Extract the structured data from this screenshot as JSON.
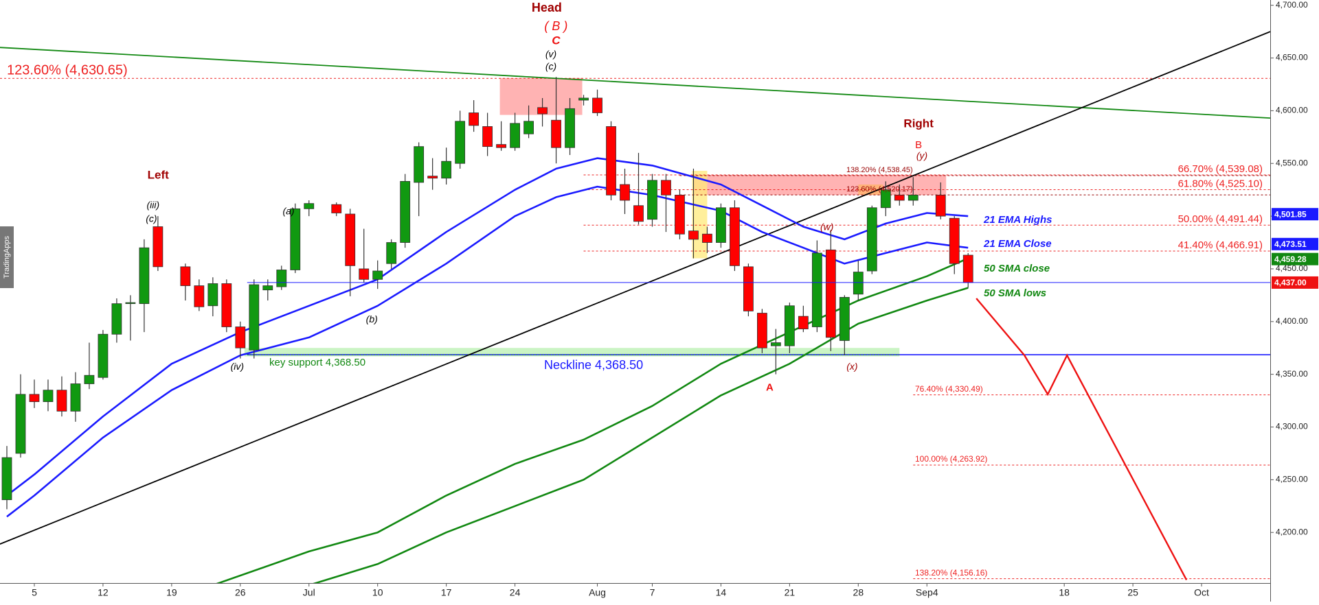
{
  "chart_data": {
    "type": "candlestick",
    "watermark": "TradingApps",
    "up_color": "#119911",
    "down_color": "#ff0000",
    "x": [
      -2,
      -1,
      0,
      1,
      2,
      3,
      4,
      5,
      6,
      7,
      8,
      9,
      11,
      12,
      13,
      14,
      15,
      16,
      17,
      18,
      19,
      20,
      22,
      23,
      24,
      25,
      26,
      27,
      28,
      29,
      30,
      31,
      32,
      33,
      34,
      35,
      36,
      37,
      38,
      39,
      40,
      41,
      42,
      43,
      44,
      45,
      46,
      47,
      48,
      49,
      50,
      51,
      52,
      53,
      54,
      55,
      56,
      57,
      58,
      59,
      60,
      61,
      62,
      63,
      64,
      66,
      67,
      68
    ],
    "open": [
      4231,
      4275,
      4331,
      4324,
      4335,
      4315,
      4341,
      4347,
      4388,
      4417,
      4417,
      4490,
      4452,
      4434,
      4415,
      4436,
      4395,
      4373,
      4430,
      4433,
      4449,
      4507,
      4511,
      4502,
      4450,
      4440,
      4455,
      4475,
      4532,
      4538,
      4536,
      4550,
      4598,
      4585,
      4568,
      4565,
      4578,
      4603,
      4591,
      4565,
      4610,
      4612,
      4585,
      4530,
      4510,
      4497,
      4534,
      4520,
      4486,
      4483,
      4475,
      4508,
      4452,
      4408,
      4377,
      4377,
      4405,
      4395,
      4468,
      4382,
      4426,
      4448,
      4508,
      4520,
      4515,
      4520,
      4498,
      4463
    ],
    "high": [
      4282,
      4350,
      4345,
      4345,
      4348,
      4352,
      4380,
      4392,
      4422,
      4425,
      4478,
      4500,
      4455,
      4440,
      4442,
      4440,
      4400,
      4440,
      4440,
      4453,
      4512,
      4515,
      4513,
      4507,
      4488,
      4458,
      4478,
      4540,
      4570,
      4555,
      4565,
      4600,
      4610,
      4598,
      4590,
      4598,
      4605,
      4612,
      4632,
      4612,
      4615,
      4620,
      4590,
      4545,
      4560,
      4540,
      4540,
      4525,
      4545,
      4490,
      4512,
      4515,
      4455,
      4412,
      4393,
      4418,
      4415,
      4477,
      4487,
      4425,
      4458,
      4510,
      4533,
      4530,
      4537,
      4532,
      4500,
      4465
    ],
    "low": [
      4222,
      4271,
      4318,
      4315,
      4310,
      4305,
      4336,
      4345,
      4380,
      4382,
      4390,
      4448,
      4420,
      4410,
      4405,
      4390,
      4365,
      4365,
      4420,
      4430,
      4446,
      4500,
      4500,
      4424,
      4437,
      4431,
      4450,
      4470,
      4500,
      4525,
      4530,
      4545,
      4580,
      4557,
      4562,
      4562,
      4574,
      4585,
      4550,
      4558,
      4605,
      4595,
      4515,
      4502,
      4492,
      4490,
      4485,
      4478,
      4460,
      4465,
      4470,
      4448,
      4405,
      4370,
      4350,
      4370,
      4390,
      4390,
      4372,
      4368,
      4420,
      4445,
      4500,
      4510,
      4510,
      4497,
      4445,
      4432
    ],
    "close": [
      4271,
      4331,
      4324,
      4335,
      4315,
      4341,
      4349,
      4388,
      4417,
      4418,
      4470,
      4452,
      4434,
      4414,
      4436,
      4395,
      4375,
      4435,
      4434,
      4449,
      4507,
      4512,
      4503,
      4453,
      4440,
      4448,
      4475,
      4533,
      4566,
      4536,
      4552,
      4590,
      4586,
      4566,
      4565,
      4588,
      4590,
      4597,
      4565,
      4602,
      4612,
      4598,
      4520,
      4515,
      4495,
      4534,
      4520,
      4483,
      4478,
      4475,
      4508,
      4453,
      4410,
      4375,
      4380,
      4415,
      4393,
      4465,
      4385,
      4423,
      4447,
      4508,
      4525,
      4515,
      4520,
      4500,
      4455,
      4437
    ],
    "xlim": [
      -2.5,
      90
    ],
    "ylim": [
      4152,
      4705
    ],
    "xticks": [
      {
        "value": 0,
        "label": "5"
      },
      {
        "value": 5,
        "label": "12"
      },
      {
        "value": 10,
        "label": "19"
      },
      {
        "value": 15,
        "label": "26"
      },
      {
        "value": 20,
        "label": "Jul"
      },
      {
        "value": 25,
        "label": "10"
      },
      {
        "value": 30,
        "label": "17"
      },
      {
        "value": 35,
        "label": "24"
      },
      {
        "value": 41,
        "label": "Aug"
      },
      {
        "value": 45,
        "label": "7"
      },
      {
        "value": 50,
        "label": "14"
      },
      {
        "value": 55,
        "label": "21"
      },
      {
        "value": 60,
        "label": "28"
      },
      {
        "value": 65,
        "label": "Sep4"
      },
      {
        "value": 75,
        "label": "18"
      },
      {
        "value": 80,
        "label": "25"
      },
      {
        "value": 85,
        "label": "Oct"
      }
    ],
    "yticks": [
      {
        "value": 4200,
        "label": "4,200.00"
      },
      {
        "value": 4250,
        "label": "4,250.00"
      },
      {
        "value": 4300,
        "label": "4,300.00"
      },
      {
        "value": 4350,
        "label": "4,350.00"
      },
      {
        "value": 4400,
        "label": "4,400.00"
      },
      {
        "value": 4450,
        "label": "4,450.00"
      },
      {
        "value": 4500,
        "label": "4,500.00"
      },
      {
        "value": 4550,
        "label": "4,550.00"
      },
      {
        "value": 4600,
        "label": "4,600.00"
      },
      {
        "value": 4650,
        "label": "4,650.00"
      },
      {
        "value": 4700,
        "label": "4,700.00"
      }
    ],
    "lines": [
      {
        "name": "21 EMA Highs",
        "color": "#1a1aff",
        "x": [
          -2,
          0,
          5,
          10,
          15,
          20,
          25,
          30,
          35,
          38,
          41,
          45,
          50,
          53,
          56,
          59,
          62,
          65,
          68
        ],
        "values": [
          4235,
          4255,
          4310,
          4360,
          4390,
          4415,
          4440,
          4485,
          4525,
          4545,
          4555,
          4548,
          4530,
          4510,
          4490,
          4478,
          4493,
          4503,
          4500
        ]
      },
      {
        "name": "21 EMA Close",
        "color": "#1a1aff",
        "x": [
          -2,
          0,
          5,
          10,
          15,
          20,
          25,
          30,
          35,
          38,
          41,
          45,
          50,
          53,
          56,
          59,
          62,
          65,
          68
        ],
        "values": [
          4215,
          4235,
          4290,
          4335,
          4368,
          4385,
          4415,
          4455,
          4500,
          4518,
          4528,
          4520,
          4505,
          4485,
          4470,
          4455,
          4465,
          4475,
          4470
        ]
      },
      {
        "name": "50 SMA close",
        "color": "#118811",
        "x": [
          13,
          20,
          25,
          30,
          35,
          40,
          45,
          50,
          55,
          60,
          65,
          68
        ],
        "values": [
          4150,
          4182,
          4200,
          4235,
          4265,
          4288,
          4320,
          4360,
          4390,
          4420,
          4443,
          4460
        ]
      },
      {
        "name": "50 SMA lows",
        "color": "#118811",
        "x": [
          20,
          25,
          30,
          35,
          40,
          45,
          50,
          55,
          60,
          65,
          68
        ],
        "values": [
          4150,
          4170,
          4200,
          4225,
          4250,
          4290,
          4330,
          4360,
          4398,
          4420,
          4432
        ]
      }
    ],
    "trendlines": [
      {
        "color": "#118811",
        "x": [
          -2.5,
          90
        ],
        "values": [
          4660,
          4593
        ]
      },
      {
        "color": "#000000",
        "x": [
          -2.5,
          90
        ],
        "values": [
          4189,
          4675
        ]
      }
    ],
    "projection": {
      "color": "#ee1111",
      "x": [
        68.6,
        72.1,
        73.8,
        75.2,
        83.9
      ],
      "values": [
        4422,
        4368,
        4331,
        4368,
        4155
      ]
    },
    "levels": [
      {
        "label": "123.60% (4,630.65)",
        "value": 4630.65,
        "color": "#ee2222"
      },
      {
        "label": "66.70% (4,539.08)",
        "value": 4539.08,
        "color": "#ee2222"
      },
      {
        "label": "61.80% (4,525.10)",
        "value": 4525.1,
        "color": "#ee2222"
      },
      {
        "label": "50.00% (4,491.44)",
        "value": 4491.44,
        "color": "#ee2222"
      },
      {
        "label": "41.40% (4,466.91)",
        "value": 4466.91,
        "color": "#ee2222"
      },
      {
        "label": "138.20% (4,538.45)",
        "value": 4538.45,
        "color": "#990000"
      },
      {
        "label": "123.60% (4,520.17)",
        "value": 4520.17,
        "color": "#990000"
      },
      {
        "label": "76.40% (4,330.49)",
        "value": 4330.49,
        "color": "#ee2222"
      },
      {
        "label": "100.00% (4,263.92)",
        "value": 4263.92,
        "color": "#ee2222"
      },
      {
        "label": "138.20% (4,156.16)",
        "value": 4156.16,
        "color": "#ee2222"
      }
    ],
    "neckline": {
      "label": "Neckline 4,368.50",
      "value": 4368.5,
      "color": "#1a1aff"
    },
    "key_support": {
      "label": "key support 4,368.50",
      "value": 4368.5,
      "color": "#118811"
    },
    "price_tags": [
      {
        "label": "4,501.85",
        "value": 4501.85,
        "color": "#1a1aff"
      },
      {
        "label": "4,473.51",
        "value": 4473.51,
        "color": "#1a1aff"
      },
      {
        "label": "4,459.28",
        "value": 4459.28,
        "color": "#118811"
      },
      {
        "label": "4,437.00",
        "value": 4437,
        "color": "#ee1111"
      }
    ],
    "zones": [
      {
        "x": [
          33.9,
          39.9
        ],
        "y": [
          4596,
          4631
        ],
        "color": "#ff9999"
      },
      {
        "x": [
          48,
          66.4
        ],
        "y": [
          4520,
          4539
        ],
        "color": "#ff9999"
      },
      {
        "x": [
          60,
          61.8
        ],
        "y": [
          4520,
          4530
        ],
        "color": "#ffb366"
      },
      {
        "x": [
          47.9,
          49
        ],
        "y": [
          4460,
          4543
        ],
        "color": "#ffe97a"
      },
      {
        "x": [
          15.3,
          63
        ],
        "y": [
          4367,
          4375
        ],
        "color": "#b8f0b0"
      }
    ],
    "annotations": [
      {
        "text": "Head",
        "color": "#a00000"
      },
      {
        "text": "( B )",
        "color": "#ee1111"
      },
      {
        "text": "C",
        "color": "#ee1111"
      },
      {
        "text": "(v)",
        "color": "#000000"
      },
      {
        "text": "(c)",
        "color": "#000000"
      },
      {
        "text": "Left",
        "color": "#a00000"
      },
      {
        "text": "(iii)",
        "color": "#000000"
      },
      {
        "text": "(c)",
        "color": "#000000"
      },
      {
        "text": "(a)",
        "color": "#000000"
      },
      {
        "text": "(b)",
        "color": "#000000"
      },
      {
        "text": "(iv)",
        "color": "#000000"
      },
      {
        "text": "Right",
        "color": "#a00000"
      },
      {
        "text": "B",
        "color": "#ee1111"
      },
      {
        "text": "(y)",
        "color": "#a00000"
      },
      {
        "text": "(w)",
        "color": "#a00000"
      },
      {
        "text": "(x)",
        "color": "#a00000"
      },
      {
        "text": "A",
        "color": "#ee1111"
      }
    ]
  }
}
